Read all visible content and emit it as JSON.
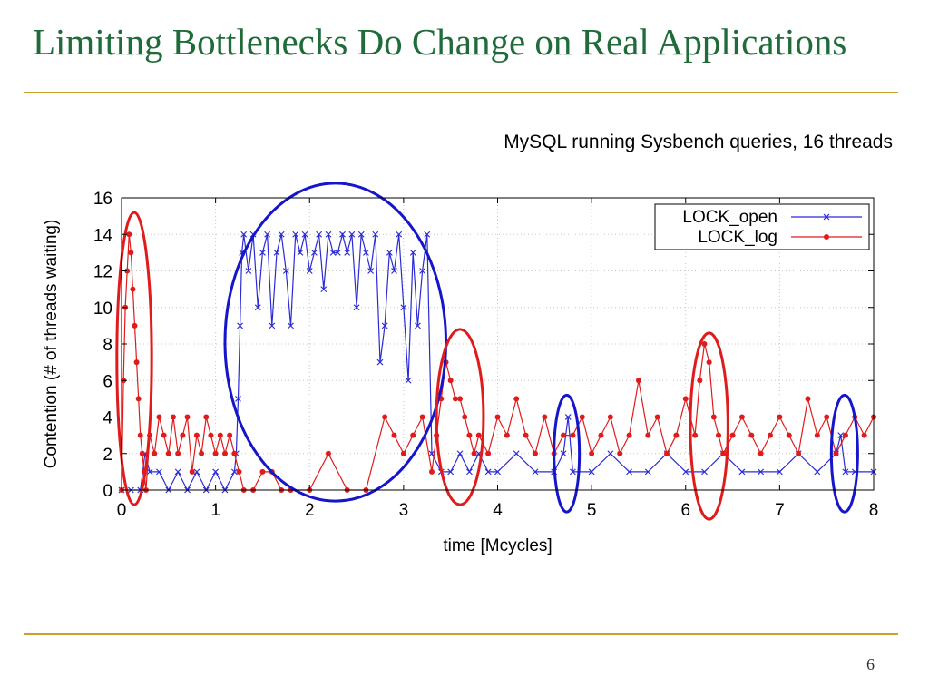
{
  "slide": {
    "title": "Limiting Bottlenecks Do Change on Real Applications",
    "subtitle": "MySQL running Sysbench queries, 16 threads",
    "page_number": "6"
  },
  "chart_data": {
    "type": "line",
    "xlabel": "time [Mcycles]",
    "ylabel": "Contention (# of threads waiting)",
    "xlim": [
      0,
      8
    ],
    "ylim": [
      0,
      16
    ],
    "xticks": [
      0,
      1,
      2,
      3,
      4,
      5,
      6,
      7,
      8
    ],
    "yticks": [
      0,
      2,
      4,
      6,
      8,
      10,
      12,
      14,
      16
    ],
    "legend_position": "top-right",
    "series": [
      {
        "name": "LOCK_open",
        "color": "#2b2bd6",
        "marker": "x",
        "x": [
          0.0,
          0.1,
          0.2,
          0.25,
          0.3,
          0.4,
          0.5,
          0.6,
          0.7,
          0.8,
          0.9,
          1.0,
          1.1,
          1.2,
          1.22,
          1.24,
          1.26,
          1.28,
          1.3,
          1.35,
          1.4,
          1.45,
          1.5,
          1.55,
          1.6,
          1.65,
          1.7,
          1.75,
          1.8,
          1.85,
          1.9,
          1.95,
          2.0,
          2.05,
          2.1,
          2.15,
          2.2,
          2.25,
          2.3,
          2.35,
          2.4,
          2.45,
          2.5,
          2.55,
          2.6,
          2.65,
          2.7,
          2.75,
          2.8,
          2.85,
          2.9,
          2.95,
          3.0,
          3.05,
          3.1,
          3.15,
          3.2,
          3.25,
          3.3,
          3.4,
          3.5,
          3.6,
          3.7,
          3.8,
          3.9,
          4.0,
          4.2,
          4.4,
          4.6,
          4.7,
          4.75,
          4.8,
          5.0,
          5.2,
          5.4,
          5.6,
          5.8,
          6.0,
          6.2,
          6.4,
          6.6,
          6.8,
          7.0,
          7.2,
          7.4,
          7.6,
          7.65,
          7.7,
          7.8,
          8.0
        ],
        "y": [
          0,
          0,
          0,
          2,
          1,
          1,
          0,
          1,
          0,
          1,
          0,
          1,
          0,
          1,
          2,
          5,
          9,
          13,
          14,
          12,
          14,
          10,
          13,
          14,
          9,
          13,
          14,
          12,
          9,
          14,
          13,
          14,
          12,
          13,
          14,
          11,
          14,
          13,
          13,
          14,
          13,
          14,
          10,
          14,
          13,
          12,
          14,
          7,
          9,
          13,
          12,
          14,
          10,
          6,
          13,
          9,
          12,
          14,
          2,
          1,
          1,
          2,
          1,
          2,
          1,
          1,
          2,
          1,
          1,
          2,
          4,
          1,
          1,
          2,
          1,
          1,
          2,
          1,
          1,
          2,
          1,
          1,
          1,
          2,
          1,
          2,
          3,
          1,
          1,
          1
        ]
      },
      {
        "name": "LOCK_log",
        "color": "#e01b1b",
        "marker": "o",
        "x": [
          0.0,
          0.02,
          0.04,
          0.06,
          0.08,
          0.1,
          0.12,
          0.14,
          0.16,
          0.18,
          0.2,
          0.22,
          0.24,
          0.26,
          0.3,
          0.35,
          0.4,
          0.45,
          0.5,
          0.55,
          0.6,
          0.65,
          0.7,
          0.75,
          0.8,
          0.85,
          0.9,
          0.95,
          1.0,
          1.05,
          1.1,
          1.15,
          1.2,
          1.25,
          1.3,
          1.4,
          1.5,
          1.6,
          1.7,
          1.8,
          2.0,
          2.2,
          2.4,
          2.6,
          2.8,
          2.9,
          3.0,
          3.1,
          3.2,
          3.3,
          3.35,
          3.4,
          3.45,
          3.5,
          3.55,
          3.6,
          3.65,
          3.7,
          3.75,
          3.8,
          3.9,
          4.0,
          4.1,
          4.2,
          4.3,
          4.4,
          4.5,
          4.6,
          4.7,
          4.8,
          4.9,
          5.0,
          5.1,
          5.2,
          5.3,
          5.4,
          5.5,
          5.6,
          5.7,
          5.8,
          5.9,
          6.0,
          6.1,
          6.15,
          6.2,
          6.25,
          6.3,
          6.35,
          6.4,
          6.5,
          6.6,
          6.7,
          6.8,
          6.9,
          7.0,
          7.1,
          7.2,
          7.3,
          7.4,
          7.5,
          7.6,
          7.7,
          7.8,
          7.9,
          8.0
        ],
        "y": [
          0,
          6,
          10,
          12,
          14,
          13,
          11,
          9,
          7,
          5,
          3,
          2,
          1,
          0,
          3,
          2,
          4,
          3,
          2,
          4,
          2,
          3,
          4,
          1,
          3,
          2,
          4,
          3,
          2,
          3,
          2,
          3,
          2,
          1,
          0,
          0,
          1,
          1,
          0,
          0,
          0,
          2,
          0,
          0,
          4,
          3,
          2,
          3,
          4,
          1,
          3,
          5,
          7,
          6,
          5,
          5,
          4,
          3,
          2,
          3,
          2,
          4,
          3,
          5,
          3,
          2,
          4,
          2,
          3,
          3,
          4,
          2,
          3,
          4,
          2,
          3,
          6,
          3,
          4,
          2,
          3,
          5,
          3,
          6,
          8,
          7,
          4,
          3,
          2,
          3,
          4,
          3,
          2,
          3,
          4,
          3,
          2,
          5,
          3,
          4,
          2,
          3,
          4,
          3,
          4
        ]
      }
    ],
    "annotations": [
      {
        "shape": "ellipse",
        "color": "#e01b1b",
        "x_range": [
          -0.05,
          0.32
        ],
        "y_range": [
          -0.8,
          15.2
        ]
      },
      {
        "shape": "ellipse",
        "color": "#1515cc",
        "x_range": [
          1.1,
          3.45
        ],
        "y_range": [
          -0.6,
          16.8
        ]
      },
      {
        "shape": "ellipse",
        "color": "#e01b1b",
        "x_range": [
          3.35,
          3.85
        ],
        "y_range": [
          -0.8,
          8.8
        ]
      },
      {
        "shape": "ellipse",
        "color": "#1515cc",
        "x_range": [
          4.6,
          4.87
        ],
        "y_range": [
          -1.2,
          5.2
        ]
      },
      {
        "shape": "ellipse",
        "color": "#e01b1b",
        "x_range": [
          6.05,
          6.45
        ],
        "y_range": [
          -1.6,
          8.6
        ]
      },
      {
        "shape": "ellipse",
        "color": "#1515cc",
        "x_range": [
          7.55,
          7.83
        ],
        "y_range": [
          -1.2,
          5.2
        ]
      }
    ]
  }
}
